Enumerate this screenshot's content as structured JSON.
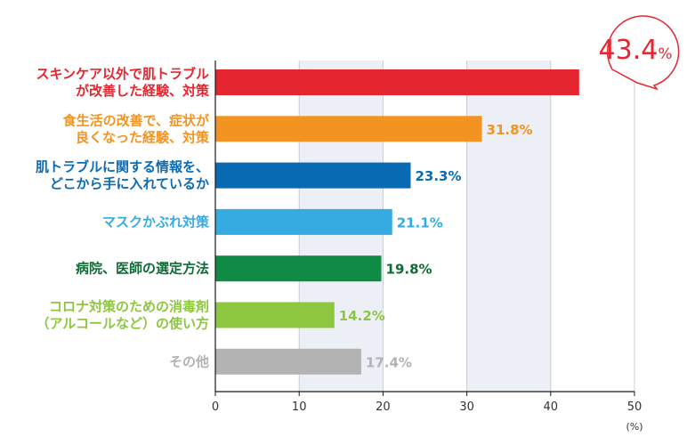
{
  "chart_data": {
    "type": "bar",
    "orientation": "horizontal",
    "categories": [
      [
        "スキンケア以外で肌トラブル",
        "が改善した経験、対策"
      ],
      [
        "食生活の改善で、症状が",
        "良くなった経験、対策"
      ],
      [
        "肌トラブルに関する情報を、",
        "どこから手に入れているか"
      ],
      [
        "マスクかぶれ対策"
      ],
      [
        "病院、医師の選定方法"
      ],
      [
        "コロナ対策のための消毒剤",
        "（アルコールなど）の使い方"
      ],
      [
        "その他"
      ]
    ],
    "values": [
      43.4,
      31.8,
      23.3,
      21.1,
      19.8,
      14.2,
      17.4
    ],
    "value_labels": [
      "",
      "31.8%",
      "23.3%",
      "21.1%",
      "19.8%",
      "14.2%",
      "17.4%"
    ],
    "colors": [
      "#e5252f",
      "#f39422",
      "#0a6bb5",
      "#36abe2",
      "#0f8b45",
      "#8dc63f",
      "#b3b3b3"
    ],
    "label_colors": [
      "#e5252f",
      "#f39422",
      "#0a6bb5",
      "#36abe2",
      "#0f6b35",
      "#8dc63f",
      "#b3b3b3"
    ],
    "xlim": [
      0,
      50
    ],
    "xticks": [
      "0",
      "10",
      "20",
      "30",
      "40",
      "50"
    ],
    "xunit": "(%)",
    "callout": {
      "number": "43.4",
      "suffix": "%"
    },
    "title": "",
    "xlabel": "",
    "ylabel": ""
  }
}
